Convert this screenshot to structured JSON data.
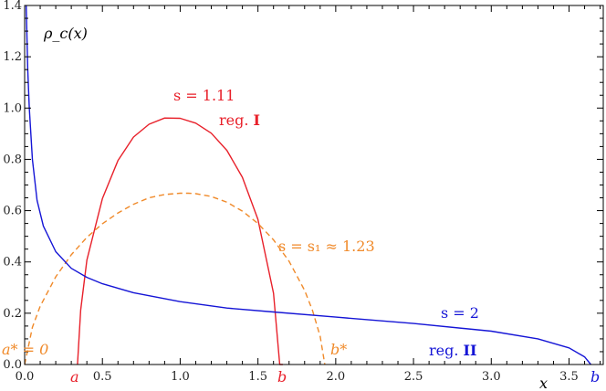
{
  "chart_data": {
    "type": "line",
    "title": "",
    "xlabel": "x",
    "ylabel": "ρ_c(x)",
    "xlim": [
      0,
      3.72
    ],
    "ylim": [
      0,
      1.4
    ],
    "x_ticks": [
      "0.0",
      "0.5",
      "1.0",
      "1.5",
      "2.0",
      "2.5",
      "3.0",
      "3.5"
    ],
    "y_ticks": [
      "0.0",
      "0.2",
      "0.4",
      "0.6",
      "0.8",
      "1.0",
      "1.2",
      "1.4"
    ],
    "grid": false,
    "colors": {
      "s111": "#e8202a",
      "s123": "#f08a2a",
      "s2": "#1515d6"
    },
    "series": [
      {
        "name": "s = 1.11",
        "style": "solid",
        "color": "#e8202a",
        "x": [
          0.34,
          0.36,
          0.4,
          0.5,
          0.6,
          0.7,
          0.8,
          0.9,
          1.0,
          1.1,
          1.2,
          1.3,
          1.4,
          1.5,
          1.6,
          1.64,
          1.66
        ],
        "y": [
          0.0,
          0.212,
          0.407,
          0.647,
          0.796,
          0.887,
          0.937,
          0.961,
          0.96,
          0.941,
          0.902,
          0.835,
          0.73,
          0.566,
          0.278,
          0.0,
          0.0
        ]
      },
      {
        "name": "s = s₁ ≈ 1.23",
        "style": "dashed",
        "color": "#f08a2a",
        "x": [
          0.0,
          0.05,
          0.1,
          0.2,
          0.3,
          0.4,
          0.5,
          0.6,
          0.7,
          0.8,
          0.9,
          1.0,
          1.05,
          1.1,
          1.2,
          1.3,
          1.4,
          1.5,
          1.6,
          1.7,
          1.8,
          1.85,
          1.9,
          1.93
        ],
        "y": [
          0.0,
          0.145,
          0.227,
          0.342,
          0.428,
          0.496,
          0.549,
          0.591,
          0.625,
          0.65,
          0.663,
          0.668,
          0.668,
          0.666,
          0.655,
          0.633,
          0.598,
          0.55,
          0.486,
          0.403,
          0.289,
          0.212,
          0.11,
          0.0
        ]
      },
      {
        "name": "s = 2",
        "style": "solid",
        "color": "#1515d6",
        "x": [
          0.01,
          0.02,
          0.03,
          0.05,
          0.08,
          0.12,
          0.2,
          0.3,
          0.4,
          0.5,
          0.7,
          1.0,
          1.3,
          1.6,
          2.0,
          2.5,
          3.0,
          3.3,
          3.5,
          3.6,
          3.64
        ],
        "y": [
          1.4,
          1.15,
          1.0,
          0.8,
          0.64,
          0.54,
          0.44,
          0.375,
          0.34,
          0.315,
          0.28,
          0.245,
          0.22,
          0.205,
          0.185,
          0.16,
          0.13,
          0.1,
          0.065,
          0.03,
          0.0
        ]
      }
    ],
    "annotations": [
      {
        "text": "s = 1.11",
        "color": "#e8202a"
      },
      {
        "text": "reg. ",
        "bold": "I",
        "color": "#e8202a"
      },
      {
        "text": "s = s₁ ≈ 1.23",
        "color": "#f08a2a"
      },
      {
        "text": "s = 2",
        "color": "#1515d6"
      },
      {
        "text": "reg. ",
        "bold": "II",
        "color": "#1515d6"
      },
      {
        "text": "a* = 0",
        "color": "#f08a2a"
      },
      {
        "text": "b*",
        "color": "#f08a2a"
      },
      {
        "text": "a",
        "color": "#e8202a"
      },
      {
        "text": "b",
        "color": "#e8202a"
      },
      {
        "text": "b",
        "color": "#1515d6"
      }
    ]
  }
}
